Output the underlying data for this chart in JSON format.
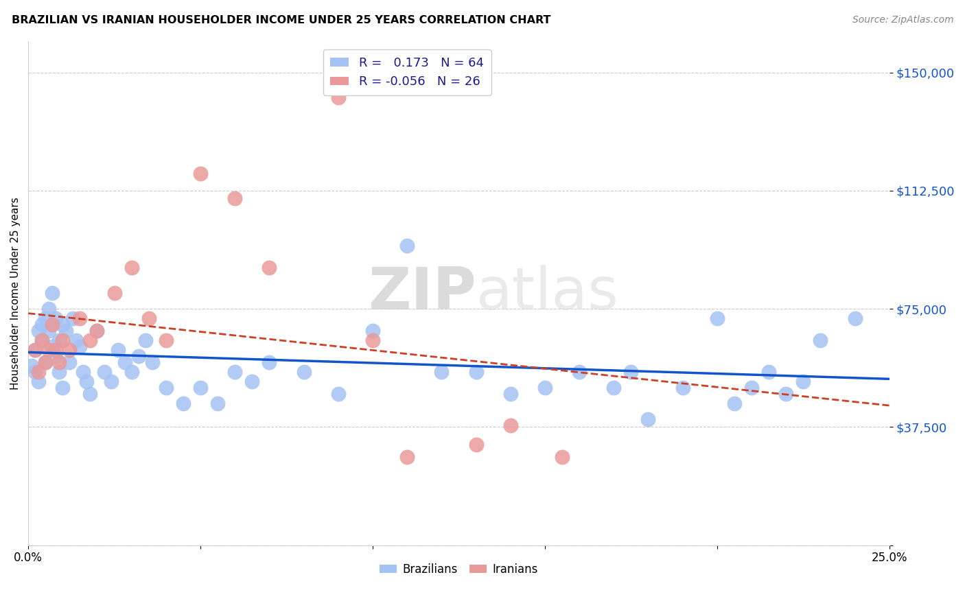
{
  "title": "BRAZILIAN VS IRANIAN HOUSEHOLDER INCOME UNDER 25 YEARS CORRELATION CHART",
  "source": "Source: ZipAtlas.com",
  "ylabel": "Householder Income Under 25 years",
  "xlim": [
    0.0,
    0.25
  ],
  "ylim": [
    0,
    160000
  ],
  "yticks": [
    0,
    37500,
    75000,
    112500,
    150000
  ],
  "ytick_labels": [
    "",
    "$37,500",
    "$75,000",
    "$112,500",
    "$150,000"
  ],
  "xticks": [
    0.0,
    0.05,
    0.1,
    0.15,
    0.2,
    0.25
  ],
  "xtick_labels": [
    "0.0%",
    "",
    "",
    "",
    "",
    "25.0%"
  ],
  "watermark_zip": "ZIP",
  "watermark_atlas": "atlas",
  "brazil_R": 0.173,
  "brazil_N": 64,
  "iran_R": -0.056,
  "iran_N": 26,
  "brazil_color": "#a4c2f4",
  "iran_color": "#ea9999",
  "brazil_line_color": "#1155cc",
  "iran_line_color": "#cc4125",
  "brazil_x": [
    0.001,
    0.002,
    0.002,
    0.003,
    0.003,
    0.004,
    0.004,
    0.005,
    0.005,
    0.006,
    0.006,
    0.007,
    0.007,
    0.008,
    0.008,
    0.009,
    0.009,
    0.01,
    0.01,
    0.011,
    0.012,
    0.013,
    0.014,
    0.015,
    0.016,
    0.017,
    0.018,
    0.02,
    0.022,
    0.024,
    0.026,
    0.028,
    0.03,
    0.032,
    0.034,
    0.036,
    0.04,
    0.045,
    0.05,
    0.055,
    0.06,
    0.065,
    0.07,
    0.08,
    0.09,
    0.1,
    0.11,
    0.12,
    0.13,
    0.14,
    0.15,
    0.16,
    0.17,
    0.175,
    0.18,
    0.19,
    0.2,
    0.205,
    0.21,
    0.215,
    0.22,
    0.225,
    0.23,
    0.24
  ],
  "brazil_y": [
    57000,
    62000,
    55000,
    68000,
    52000,
    65000,
    70000,
    72000,
    58000,
    75000,
    68000,
    63000,
    80000,
    72000,
    60000,
    55000,
    65000,
    50000,
    70000,
    68000,
    58000,
    72000,
    65000,
    63000,
    55000,
    52000,
    48000,
    68000,
    55000,
    52000,
    62000,
    58000,
    55000,
    60000,
    65000,
    58000,
    50000,
    45000,
    50000,
    45000,
    55000,
    52000,
    58000,
    55000,
    48000,
    68000,
    95000,
    55000,
    55000,
    48000,
    50000,
    55000,
    50000,
    55000,
    40000,
    50000,
    72000,
    45000,
    50000,
    55000,
    48000,
    52000,
    65000,
    72000
  ],
  "iran_x": [
    0.002,
    0.003,
    0.004,
    0.005,
    0.006,
    0.007,
    0.008,
    0.009,
    0.01,
    0.012,
    0.015,
    0.018,
    0.02,
    0.025,
    0.03,
    0.035,
    0.04,
    0.05,
    0.06,
    0.07,
    0.09,
    0.1,
    0.11,
    0.13,
    0.14,
    0.155
  ],
  "iran_y": [
    62000,
    55000,
    65000,
    58000,
    62000,
    70000,
    62000,
    58000,
    65000,
    62000,
    72000,
    65000,
    68000,
    80000,
    88000,
    72000,
    65000,
    118000,
    110000,
    88000,
    142000,
    65000,
    28000,
    32000,
    38000,
    28000
  ]
}
